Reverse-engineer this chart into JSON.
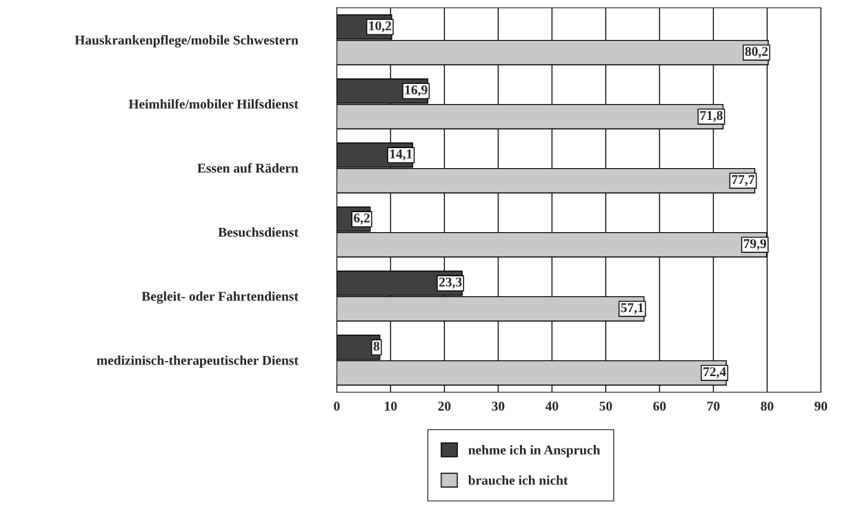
{
  "chart_data": {
    "type": "bar",
    "orientation": "horizontal",
    "categories": [
      "Hauskrankenpflege/mobile Schwestern",
      "Heimhilfe/mobiler Hilfsdienst",
      "Essen auf Rädern",
      "Besuchsdienst",
      "Begleit- oder Fahrtendienst",
      "medizinisch-therapeutischer Dienst"
    ],
    "series": [
      {
        "name": "nehme ich in Anspruch",
        "color": "#404040",
        "values": [
          10.2,
          16.9,
          14.1,
          6.2,
          23.3,
          8
        ],
        "value_labels": [
          "10,2",
          "16,9",
          "14,1",
          "6,2",
          "23,3",
          "8"
        ]
      },
      {
        "name": "brauche ich nicht",
        "color": "#c8c8c8",
        "values": [
          80.2,
          71.8,
          77.7,
          79.9,
          57.1,
          72.4
        ],
        "value_labels": [
          "80,2",
          "71,8",
          "77,7",
          "79,9",
          "57,1",
          "72,4"
        ]
      }
    ],
    "xlim": [
      0,
      90
    ],
    "xticks": [
      0,
      10,
      20,
      30,
      40,
      50,
      60,
      70,
      80,
      90
    ],
    "grid": "x",
    "legend": "bottom"
  }
}
